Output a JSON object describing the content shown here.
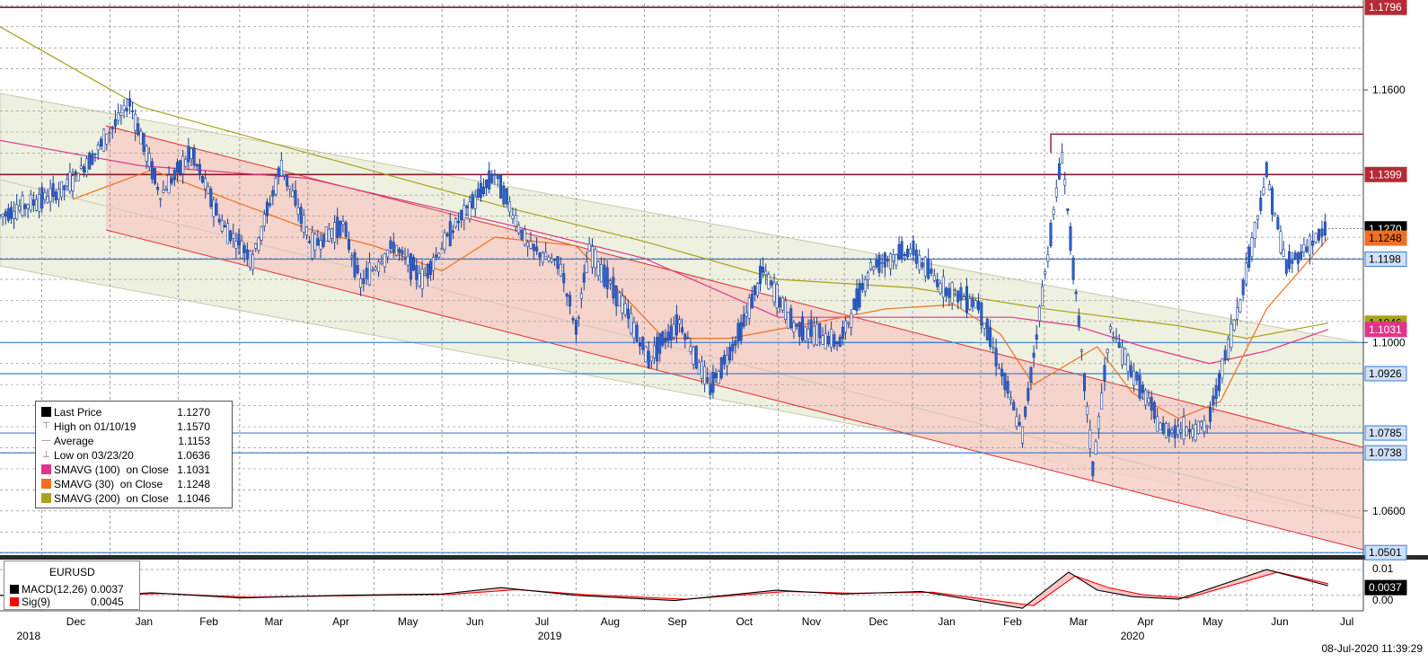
{
  "chart_data": {
    "type": "line",
    "instrument": "EURUSD",
    "price_axis": {
      "ticks": [
        "1.1600",
        "1.1000",
        "1.0600"
      ],
      "ylim": [
        1.0495,
        1.1805
      ]
    },
    "x_axis": {
      "months": [
        "Dec",
        "Jan",
        "Feb",
        "Mar",
        "Apr",
        "May",
        "Jun",
        "Jul",
        "Aug",
        "Sep",
        "Oct",
        "Nov",
        "Dec",
        "Jan",
        "Feb",
        "Mar",
        "Apr",
        "May",
        "Jun",
        "Jul"
      ],
      "years": [
        "2018",
        "2019",
        "2020"
      ],
      "range": [
        "2018-11-12",
        "2020-07-24"
      ]
    },
    "horizontal_levels": [
      {
        "value": 1.1796,
        "label": "1.1796",
        "color": "#8b1a2b"
      },
      {
        "value": 1.1399,
        "label": "1.1399",
        "color": "#8b1a2b"
      },
      {
        "value": 1.1198,
        "label": "1.1198",
        "color": "#3a7fd5"
      },
      {
        "value": 1.1,
        "color": "#3a7fd5"
      },
      {
        "value": 1.0926,
        "label": "1.0926",
        "color": "#3a7fd5"
      },
      {
        "value": 1.0785,
        "label": "1.0785",
        "color": "#3a7fd5"
      },
      {
        "value": 1.0738,
        "label": "1.0738",
        "color": "#3a7fd5"
      },
      {
        "value": 1.0501,
        "label": "1.0501",
        "color": "#3a7fd5"
      }
    ],
    "tags": [
      {
        "value": 1.127,
        "label": "1.1270",
        "bg": "#000000",
        "fg": "#ffffff"
      },
      {
        "value": 1.1248,
        "label": "1.1248",
        "bg": "#f07020",
        "fg": "#000000"
      },
      {
        "value": 1.1046,
        "label": "1.1046",
        "bg": "#a9a31b",
        "fg": "#000000"
      },
      {
        "value": 1.1031,
        "label": "1.1031",
        "bg": "#e0358c",
        "fg": "#ffffff"
      }
    ],
    "price_series": [
      {
        "date": "2018-11-12",
        "value": 1.13
      },
      {
        "date": "2018-11-26",
        "value": 1.133
      },
      {
        "date": "2018-12-10",
        "value": 1.136
      },
      {
        "date": "2018-12-24",
        "value": 1.144
      },
      {
        "date": "2019-01-10",
        "value": 1.157
      },
      {
        "date": "2019-01-24",
        "value": 1.135
      },
      {
        "date": "2019-02-07",
        "value": 1.145
      },
      {
        "date": "2019-02-21",
        "value": 1.128
      },
      {
        "date": "2019-03-07",
        "value": 1.12
      },
      {
        "date": "2019-03-20",
        "value": 1.142
      },
      {
        "date": "2019-04-03",
        "value": 1.123
      },
      {
        "date": "2019-04-17",
        "value": 1.128
      },
      {
        "date": "2019-04-25",
        "value": 1.114
      },
      {
        "date": "2019-05-10",
        "value": 1.123
      },
      {
        "date": "2019-05-23",
        "value": 1.115
      },
      {
        "date": "2019-06-06",
        "value": 1.127
      },
      {
        "date": "2019-06-25",
        "value": 1.14
      },
      {
        "date": "2019-07-10",
        "value": 1.123
      },
      {
        "date": "2019-07-25",
        "value": 1.118
      },
      {
        "date": "2019-08-01",
        "value": 1.103
      },
      {
        "date": "2019-08-07",
        "value": 1.122
      },
      {
        "date": "2019-08-22",
        "value": 1.109
      },
      {
        "date": "2019-09-03",
        "value": 1.096
      },
      {
        "date": "2019-09-17",
        "value": 1.105
      },
      {
        "date": "2019-10-01",
        "value": 1.089
      },
      {
        "date": "2019-10-15",
        "value": 1.103
      },
      {
        "date": "2019-10-25",
        "value": 1.117
      },
      {
        "date": "2019-11-08",
        "value": 1.104
      },
      {
        "date": "2019-11-29",
        "value": 1.1
      },
      {
        "date": "2019-12-13",
        "value": 1.118
      },
      {
        "date": "2019-12-31",
        "value": 1.122
      },
      {
        "date": "2020-01-15",
        "value": 1.113
      },
      {
        "date": "2020-01-31",
        "value": 1.109
      },
      {
        "date": "2020-02-20",
        "value": 1.078
      },
      {
        "date": "2020-03-09",
        "value": 1.145
      },
      {
        "date": "2020-03-23",
        "value": 1.07
      },
      {
        "date": "2020-03-31",
        "value": 1.103
      },
      {
        "date": "2020-04-24",
        "value": 1.079
      },
      {
        "date": "2020-05-14",
        "value": 1.08
      },
      {
        "date": "2020-05-29",
        "value": 1.11
      },
      {
        "date": "2020-06-10",
        "value": 1.14
      },
      {
        "date": "2020-06-19",
        "value": 1.118
      },
      {
        "date": "2020-07-01",
        "value": 1.124
      },
      {
        "date": "2020-07-08",
        "value": 1.127
      }
    ],
    "series": [
      {
        "name": "SMAVG (100)  on Close",
        "color": "#e0358c",
        "points": [
          [
            "2018-11-12",
            1.148
          ],
          [
            "2019-01-15",
            1.142
          ],
          [
            "2019-04-01",
            1.139
          ],
          [
            "2019-07-01",
            1.128
          ],
          [
            "2019-09-01",
            1.12
          ],
          [
            "2019-11-01",
            1.106
          ],
          [
            "2020-01-01",
            1.106
          ],
          [
            "2020-02-15",
            1.106
          ],
          [
            "2020-03-15",
            1.104
          ],
          [
            "2020-04-15",
            1.099
          ],
          [
            "2020-05-15",
            1.095
          ],
          [
            "2020-06-10",
            1.098
          ],
          [
            "2020-07-08",
            1.1031
          ]
        ]
      },
      {
        "name": "SMAVG (30)  on Close",
        "color": "#f07020",
        "points": [
          [
            "2018-12-15",
            1.134
          ],
          [
            "2019-01-20",
            1.141
          ],
          [
            "2019-03-01",
            1.133
          ],
          [
            "2019-04-01",
            1.127
          ],
          [
            "2019-05-01",
            1.123
          ],
          [
            "2019-06-01",
            1.117
          ],
          [
            "2019-06-25",
            1.125
          ],
          [
            "2019-08-01",
            1.123
          ],
          [
            "2019-09-10",
            1.101
          ],
          [
            "2019-10-10",
            1.101
          ],
          [
            "2019-11-20",
            1.105
          ],
          [
            "2019-12-20",
            1.108
          ],
          [
            "2020-01-20",
            1.109
          ],
          [
            "2020-02-10",
            1.102
          ],
          [
            "2020-02-25",
            1.09
          ],
          [
            "2020-03-25",
            1.099
          ],
          [
            "2020-04-10",
            1.088
          ],
          [
            "2020-05-01",
            1.082
          ],
          [
            "2020-05-20",
            1.086
          ],
          [
            "2020-06-10",
            1.108
          ],
          [
            "2020-07-08",
            1.1248
          ]
        ]
      },
      {
        "name": "SMAVG (200)  on Close",
        "color": "#a9a31b",
        "points": [
          [
            "2018-11-12",
            1.175
          ],
          [
            "2019-01-15",
            1.156
          ],
          [
            "2019-04-01",
            1.145
          ],
          [
            "2019-07-01",
            1.132
          ],
          [
            "2019-09-01",
            1.124
          ],
          [
            "2019-11-01",
            1.115
          ],
          [
            "2020-01-01",
            1.113
          ],
          [
            "2020-03-01",
            1.108
          ],
          [
            "2020-05-01",
            1.104
          ],
          [
            "2020-06-01",
            1.101
          ],
          [
            "2020-07-08",
            1.1046
          ]
        ]
      }
    ],
    "legend": [
      {
        "name": "Last Price",
        "value": "1.1270",
        "symbol": "square",
        "color": "#000000"
      },
      {
        "name": "High on 01/10/19",
        "value": "1.1570",
        "symbol": "high",
        "color": "#777777"
      },
      {
        "name": "Average",
        "value": "1.1153",
        "symbol": "avg",
        "color": "#777777"
      },
      {
        "name": "Low on 03/23/20",
        "value": "1.0636",
        "symbol": "low",
        "color": "#777777"
      },
      {
        "name": "SMAVG (100)  on Close",
        "value": "1.1031",
        "symbol": "square",
        "color": "#e0358c"
      },
      {
        "name": "SMAVG (30)  on Close",
        "value": "1.1248",
        "symbol": "square",
        "color": "#f07020"
      },
      {
        "name": "SMAVG (200)  on Close",
        "value": "1.1046",
        "symbol": "square",
        "color": "#a9a31b"
      }
    ],
    "macd": {
      "title": "EURUSD",
      "ticks": [
        "0.01",
        "0.00"
      ],
      "ylim": [
        -0.006,
        0.0135
      ],
      "tag": "0.0037",
      "macd_label": "MACD(12,26)",
      "macd_value": "0.0037",
      "macd_color": "#000000",
      "sig_label": "Sig(9)",
      "sig_value": "0.0045",
      "sig_color": "#ff0000",
      "macd_points": [
        [
          "2018-11-12",
          0.0
        ],
        [
          "2018-12-20",
          -0.0005
        ],
        [
          "2019-01-20",
          0.001
        ],
        [
          "2019-03-01",
          -0.001
        ],
        [
          "2019-04-15",
          0.0
        ],
        [
          "2019-06-01",
          0.0005
        ],
        [
          "2019-06-28",
          0.003
        ],
        [
          "2019-08-01",
          0.0
        ],
        [
          "2019-09-15",
          -0.002
        ],
        [
          "2019-10-31",
          0.002
        ],
        [
          "2019-11-30",
          0.0005
        ],
        [
          "2020-01-05",
          0.0015
        ],
        [
          "2020-02-20",
          -0.005
        ],
        [
          "2020-03-12",
          0.009
        ],
        [
          "2020-03-25",
          0.002
        ],
        [
          "2020-04-10",
          -0.0005
        ],
        [
          "2020-05-01",
          -0.0015
        ],
        [
          "2020-06-10",
          0.01
        ],
        [
          "2020-07-08",
          0.0037
        ]
      ],
      "signal_points": [
        [
          "2018-11-12",
          0.0
        ],
        [
          "2018-12-20",
          -0.0002
        ],
        [
          "2019-01-25",
          0.0007
        ],
        [
          "2019-03-05",
          -0.0007
        ],
        [
          "2019-04-15",
          -0.0002
        ],
        [
          "2019-06-05",
          0.0004
        ],
        [
          "2019-07-05",
          0.0022
        ],
        [
          "2019-08-05",
          0.0003
        ],
        [
          "2019-09-20",
          -0.0015
        ],
        [
          "2019-11-05",
          0.0015
        ],
        [
          "2019-12-05",
          0.0008
        ],
        [
          "2020-01-10",
          0.0012
        ],
        [
          "2020-02-25",
          -0.004
        ],
        [
          "2020-03-15",
          0.0075
        ],
        [
          "2020-03-30",
          0.003
        ],
        [
          "2020-04-15",
          0.0002
        ],
        [
          "2020-05-05",
          -0.001
        ],
        [
          "2020-06-15",
          0.009
        ],
        [
          "2020-07-08",
          0.0045
        ]
      ]
    },
    "timestamp": "08-Jul-2020 11:39:29"
  }
}
